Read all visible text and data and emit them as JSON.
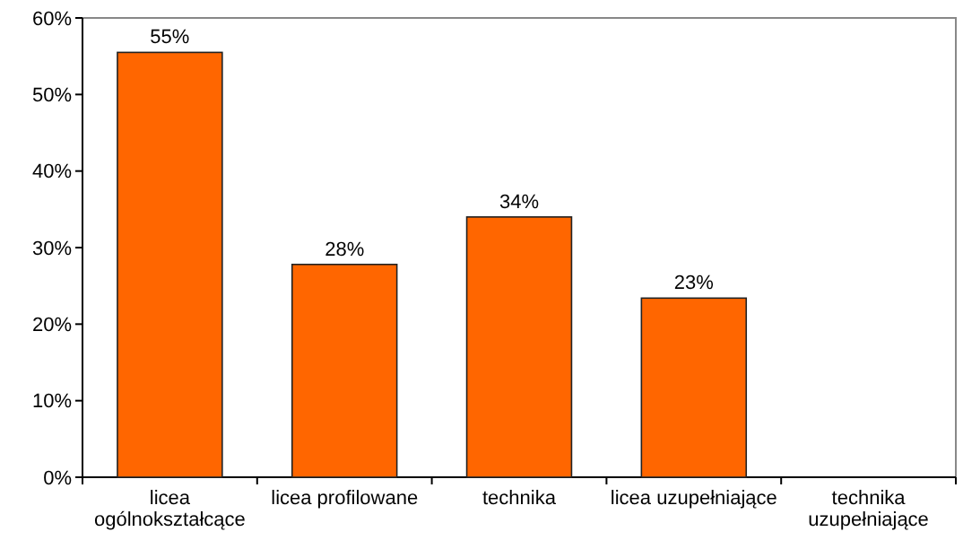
{
  "chart_data": {
    "type": "bar",
    "categories": [
      "licea ogólnokształcące",
      "licea profilowane",
      "technika",
      "licea uzupełniające",
      "technika uzupełniające"
    ],
    "values": [
      55.5,
      27.8,
      34,
      23.4,
      null
    ],
    "value_labels": [
      "55%",
      "28%",
      "34%",
      "23%",
      null
    ],
    "color": "#ff6600",
    "ylim": [
      0,
      60
    ],
    "yticks": [
      {
        "value": 0,
        "label": "0%"
      },
      {
        "value": 10,
        "label": "10%"
      },
      {
        "value": 20,
        "label": "20%"
      },
      {
        "value": 30,
        "label": "30%"
      },
      {
        "value": 40,
        "label": "40%"
      },
      {
        "value": 50,
        "label": "50%"
      },
      {
        "value": 60,
        "label": "60%"
      }
    ],
    "grid": false
  }
}
